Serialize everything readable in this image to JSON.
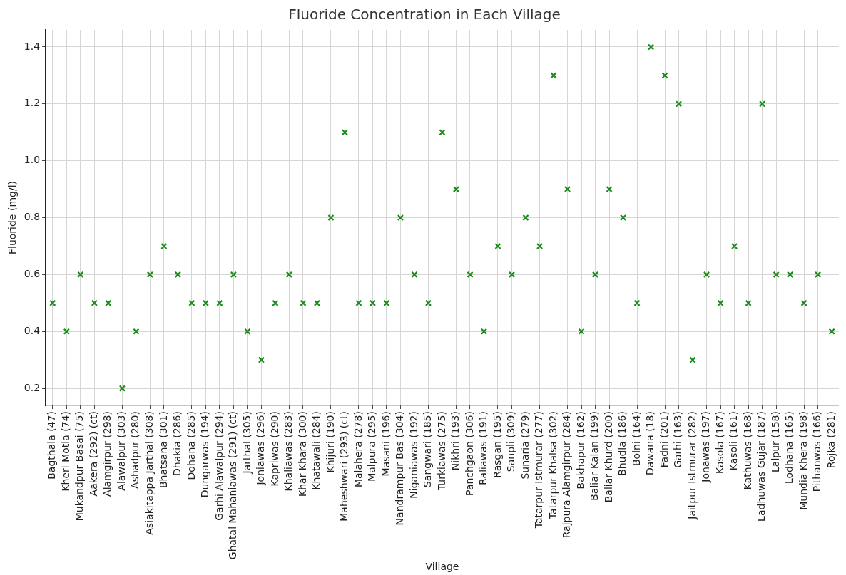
{
  "chart_data": {
    "type": "scatter",
    "title": "Fluoride Concentration in Each Village",
    "xlabel": "Village",
    "ylabel": "Fluoride (mg/l)",
    "categories": [
      "Bagthala (47)",
      "Kheri Motla (74)",
      "Mukandpur Basai (75)",
      "Aakera (292) (ct)",
      "Alamgirpur (298)",
      "Alawalpur (303)",
      "Ashadpur (280)",
      "Asiakitappa Jarthal (308)",
      "Bhatsana (301)",
      "Dhakia (286)",
      "Dohana (285)",
      "Dungarwas (194)",
      "Garhi Alawalpur (294)",
      "Ghatal Mahaniawas (291) (ct)",
      "Jarthal (305)",
      "Joniawas (296)",
      "Kapriwas (290)",
      "Khaliawas (283)",
      "Khar Khara (300)",
      "Khatawali (284)",
      "Khijuri (190)",
      "Maheshwari (293) (ct)",
      "Malahera (278)",
      "Malpura (295)",
      "Masani (196)",
      "Nandrampur Bas (304)",
      "Niganiawas (192)",
      "Sangwari (185)",
      "Turkiawas (275)",
      "Nikhri (193)",
      "Panchgaon (306)",
      "Raliawas (191)",
      "Rasgan (195)",
      "Sanpli (309)",
      "Sunaria (279)",
      "Tatarpur Istmurar (277)",
      "Tatarpur Khalsa (302)",
      "Rajpura Alamgirpur (284)",
      "Bakhapur (162)",
      "Baliar Kalan (199)",
      "Baliar Khurd (200)",
      "Bhudla (186)",
      "Bolni (164)",
      "Dawana (18)",
      "Fadni (201)",
      "Garhi (163)",
      "Jaitpur Istmurar (282)",
      "Jonawas (197)",
      "Kasola (167)",
      "Kasoli (161)",
      "Kathuwas (168)",
      "Ladhuwas Gujar (187)",
      "Lalpur (158)",
      "Lodhana (165)",
      "Mundia Khera (198)",
      "Pithanwas (166)",
      "Rojka (281)"
    ],
    "series": [
      {
        "color": "#1a8c1a",
        "values": [
          0.5,
          0.4,
          0.6,
          0.5,
          0.5,
          0.2,
          0.4,
          0.6,
          0.7,
          0.6,
          0.5,
          0.5,
          0.5,
          0.6,
          0.4,
          0.3,
          0.5,
          0.6,
          0.5,
          0.5,
          0.8,
          1.1,
          0.5,
          0.5,
          0.5,
          0.8,
          0.6,
          0.5,
          1.1,
          0.9,
          0.6,
          0.4,
          0.7,
          0.6,
          0.8,
          0.7,
          1.3,
          0.9,
          0.4,
          0.6,
          0.9,
          0.8,
          0.5,
          1.4,
          1.3,
          1.2,
          0.3,
          0.6,
          0.5,
          0.7,
          0.5,
          1.2,
          0.6,
          0.6,
          0.5,
          0.6,
          0.4
        ]
      }
    ],
    "ylim": [
      0.14,
      1.46
    ],
    "yticks": [
      0.2,
      0.4,
      0.6,
      0.8,
      {
        "value": 1,
        "label": "1.0"
      },
      1.2,
      1.4
    ],
    "grid": true,
    "legend": false,
    "marker": "cross"
  }
}
